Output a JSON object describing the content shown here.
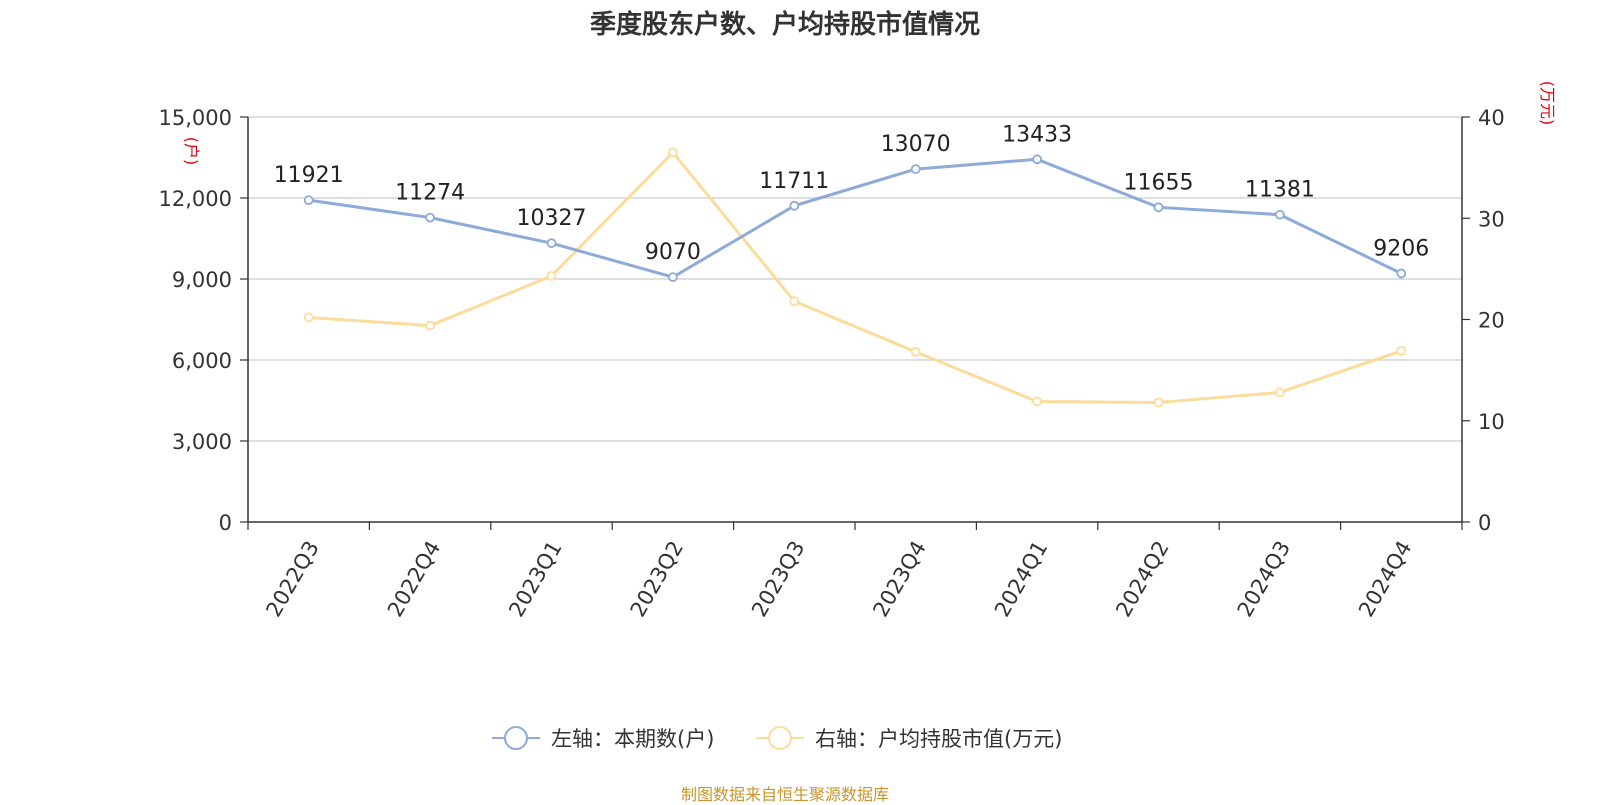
{
  "title": "季度股东户数、户均持股市值情况",
  "source": "制图数据来自恒生聚源数据库",
  "colors": {
    "left_series": "#8eaad8",
    "right_series": "#fbdc9c",
    "axis_unit": "#e8000b"
  },
  "chart_data": {
    "type": "line",
    "title": "季度股东户数、户均持股市值情况",
    "categories": [
      "2022Q3",
      "2022Q4",
      "2023Q1",
      "2023Q2",
      "2023Q3",
      "2023Q4",
      "2024Q1",
      "2024Q2",
      "2024Q3",
      "2024Q4"
    ],
    "left_axis": {
      "unit": "(户)",
      "ylim": [
        0,
        15000
      ],
      "ticks": [
        "0",
        "3,000",
        "6,000",
        "9,000",
        "12,000",
        "15,000"
      ],
      "tick_values": [
        0,
        3000,
        6000,
        9000,
        12000,
        15000
      ]
    },
    "right_axis": {
      "unit": "(万元)",
      "ylim": [
        0,
        40
      ],
      "ticks": [
        "0",
        "10",
        "20",
        "30",
        "40"
      ],
      "tick_values": [
        0,
        10,
        20,
        30,
        40
      ]
    },
    "series": [
      {
        "name": "左轴：本期数(户)",
        "axis": "left",
        "values": [
          11921,
          11274,
          10327,
          9070,
          11711,
          13070,
          13433,
          11655,
          11381,
          9206
        ],
        "labels": [
          "11921",
          "11274",
          "10327",
          "9070",
          "11711",
          "13070",
          "13433",
          "11655",
          "11381",
          "9206"
        ]
      },
      {
        "name": "右轴：户均持股市值(万元)",
        "axis": "right",
        "values": [
          20.2,
          19.4,
          24.3,
          36.5,
          21.8,
          16.8,
          11.9,
          11.8,
          12.8,
          16.9
        ]
      }
    ],
    "grid": true,
    "legend": "bottom-center"
  }
}
